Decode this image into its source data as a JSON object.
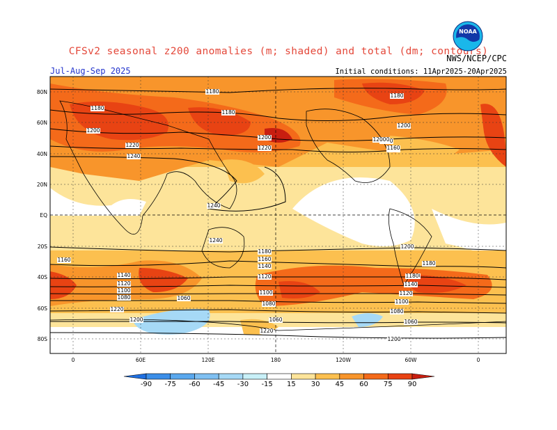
{
  "title": "CFSv2 seasonal z200 anomalies (m; shaded) and total (dm; contours)",
  "agency": "NWS/NCEP/CPC",
  "season": "Jul-Aug-Sep 2025",
  "initial_conditions": "Initial conditions: 11Apr2025-20Apr2025",
  "logo_text": "NOAA",
  "lat_labels": [
    "80N",
    "60N",
    "40N",
    "20N",
    "EQ",
    "20S",
    "40S",
    "60S",
    "80S"
  ],
  "lon_labels": [
    "0",
    "60E",
    "120E",
    "180",
    "120W",
    "60W",
    "0"
  ],
  "colorbar": {
    "levels": [
      "-90",
      "-75",
      "-60",
      "-45",
      "-30",
      "-15",
      "15",
      "30",
      "45",
      "60",
      "75",
      "90"
    ],
    "colors": [
      "#1f6fe0",
      "#3b8ee8",
      "#5aa8ee",
      "#7fc0f2",
      "#a6d9f6",
      "#c8f0f8",
      "#ffffff",
      "#fde49a",
      "#fcc04f",
      "#f8952b",
      "#f46a1a",
      "#e84313",
      "#c81e10"
    ]
  },
  "contour_labels": [
    "1180",
    "1180",
    "1180",
    "1200",
    "1220",
    "1240",
    "1240",
    "1240",
    "1200",
    "1220",
    "1180",
    "1200",
    "1220",
    "1180",
    "1160",
    "1140",
    "1120",
    "1100",
    "1080",
    "1060",
    "1220",
    "1200",
    "1180",
    "1160",
    "1140",
    "1120",
    "1100",
    "1080",
    "1060",
    "1220",
    "1200",
    "1180",
    "1160",
    "1140",
    "1120",
    "1100",
    "1080",
    "1060",
    "1200",
    "1220",
    "1160",
    "1180",
    "1200",
    "1220",
    "1180",
    "1200"
  ]
}
